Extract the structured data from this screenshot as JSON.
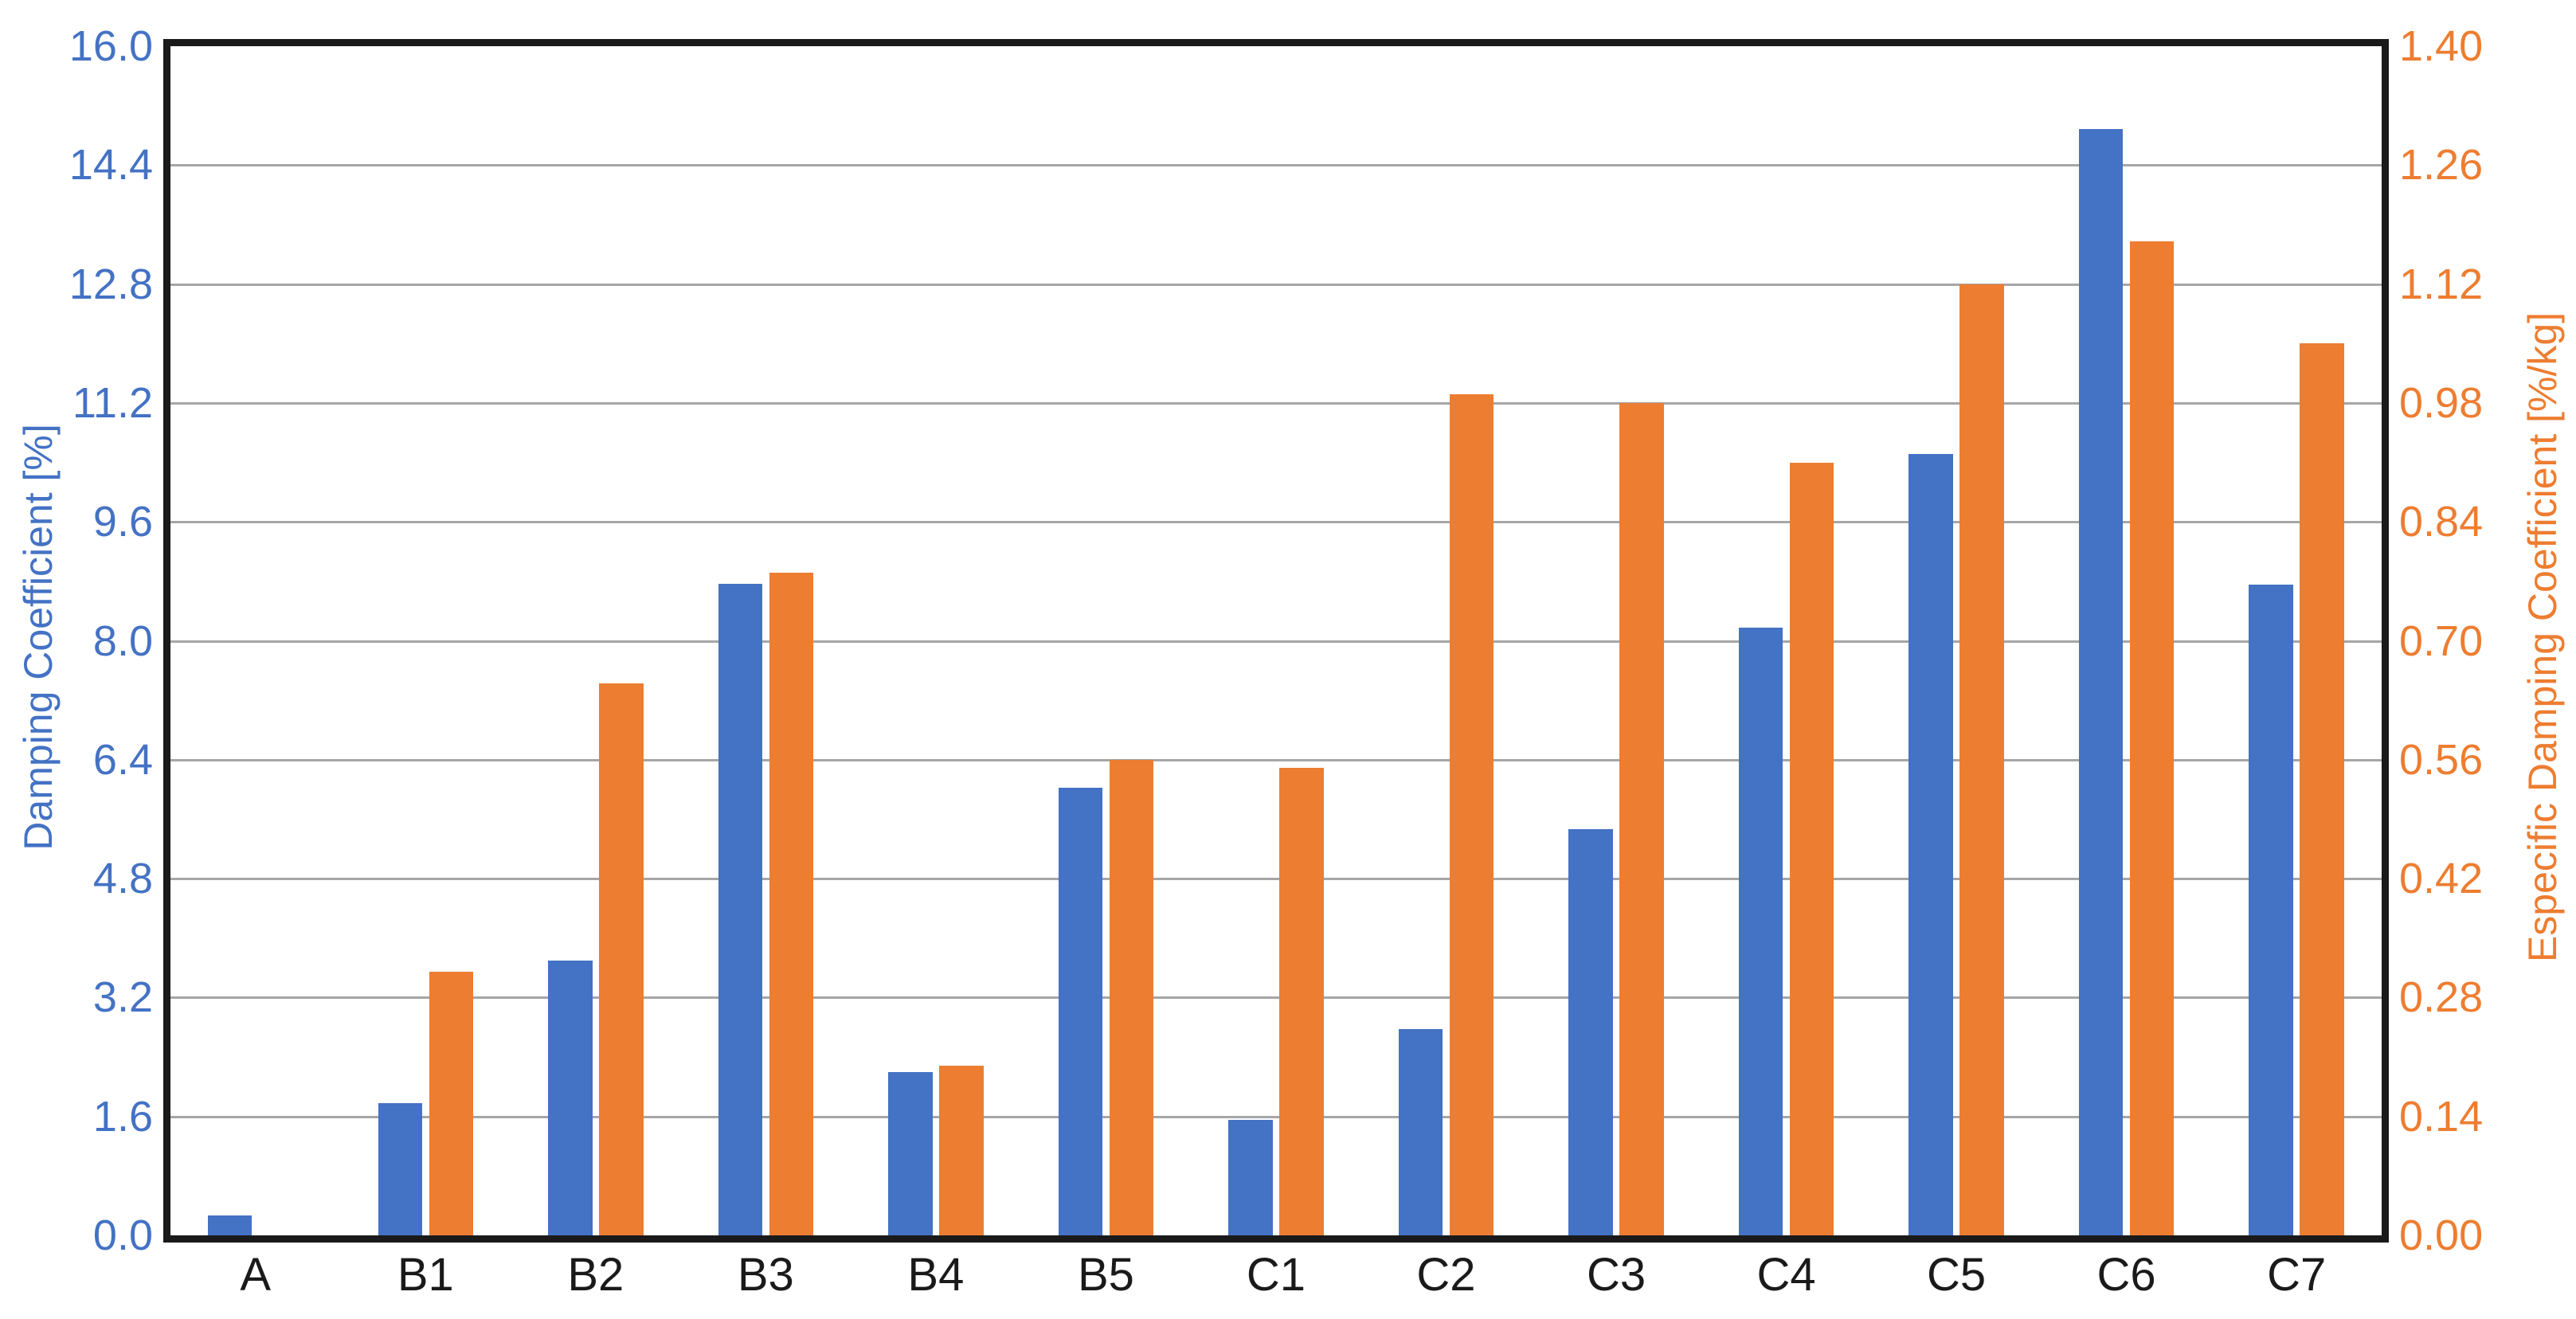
{
  "chart_data": {
    "type": "bar",
    "title": "",
    "categories": [
      "A",
      "B1",
      "B2",
      "B3",
      "B4",
      "B5",
      "C1",
      "C2",
      "C3",
      "C4",
      "C5",
      "C6",
      "C7"
    ],
    "series": [
      {
        "name": "Damping Coefficient [%]",
        "axis": "left",
        "color": "#4472C4",
        "values": [
          0.27,
          1.78,
          3.7,
          8.77,
          2.2,
          6.02,
          1.55,
          2.78,
          5.47,
          8.18,
          10.51,
          14.89,
          8.76
        ]
      },
      {
        "name": "Especific Damping Coefficient [%/kg]",
        "axis": "right",
        "color": "#ED7D31",
        "values": [
          0,
          0.31,
          0.65,
          0.78,
          0.2,
          0.56,
          0.55,
          0.99,
          0.98,
          0.91,
          1.12,
          1.17,
          1.05
        ]
      }
    ],
    "left_axis": {
      "label": "Damping Coefficient [%]",
      "color": "#4472C4",
      "min": 0,
      "max": 16,
      "tick_labels": [
        "16.0",
        "14.4",
        "12.8",
        "11.2",
        "9.6",
        "8.0",
        "6.4",
        "4.8",
        "3.2",
        "1.6",
        "0.0"
      ],
      "tick_values": [
        16.0,
        14.4,
        12.8,
        11.2,
        9.6,
        8.0,
        6.4,
        4.8,
        3.2,
        1.6,
        0.0
      ]
    },
    "right_axis": {
      "label": "Especific Damping Coefficient [%/kg]",
      "color": "#ED7D31",
      "min": 0,
      "max": 1.4,
      "tick_labels": [
        "1.40",
        "1.26",
        "1.12",
        "0.98",
        "0.84",
        "0.70",
        "0.56",
        "0.42",
        "0.28",
        "0.14",
        "0.00"
      ],
      "tick_values": [
        1.4,
        1.26,
        1.12,
        0.98,
        0.84,
        0.7,
        0.56,
        0.42,
        0.28,
        0.14,
        0.0
      ]
    },
    "grid": true,
    "gridline_color": "#A6A6A6",
    "plot_border_color": "#1A1A1A",
    "background_color": "#FFFFFF",
    "legend": "none"
  }
}
